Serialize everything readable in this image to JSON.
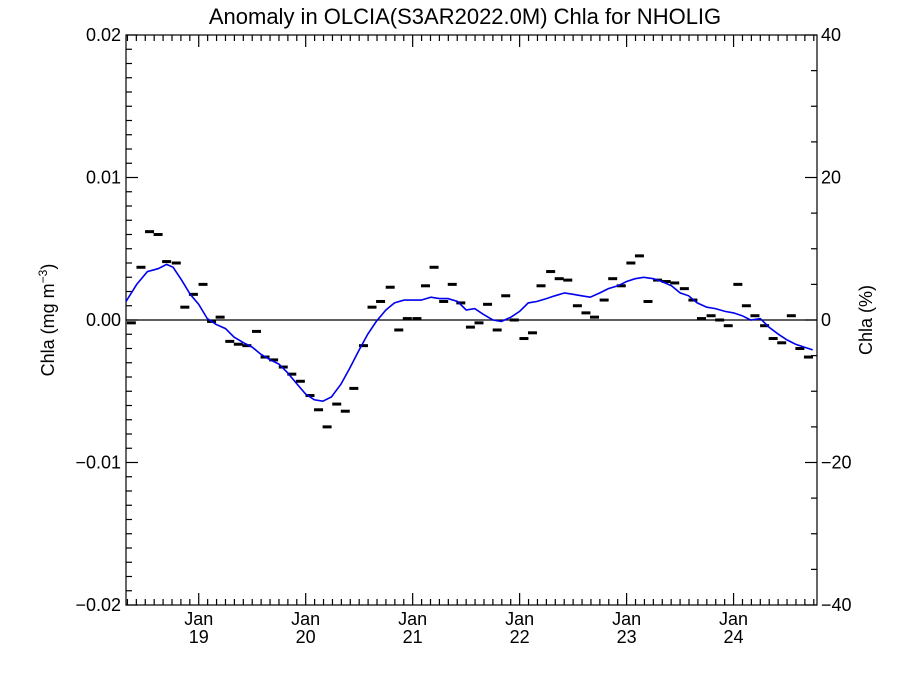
{
  "chart_data": {
    "type": "line",
    "title": "Anomaly in OLCIA(S3AR2022.0M) Chla for NHOLIG",
    "ylabel_left": {
      "main": "Chla (mg m",
      "superscript": "−3",
      "close": ")"
    },
    "ylabel_right": "Chla (%)",
    "xlim": [
      2018.32,
      2024.78
    ],
    "ylim_left": [
      -0.02,
      0.02
    ],
    "ylim_right": [
      -40,
      40
    ],
    "left_ticks": [
      {
        "value": 0.02,
        "label": "0.02"
      },
      {
        "value": 0.01,
        "label": "0.01"
      },
      {
        "value": 0.0,
        "label": "0.00"
      },
      {
        "value": -0.01,
        "label": "−0.01"
      },
      {
        "value": -0.02,
        "label": "−0.02"
      }
    ],
    "right_ticks": [
      {
        "value": 40,
        "label": "40"
      },
      {
        "value": 20,
        "label": "20"
      },
      {
        "value": 0,
        "label": "0"
      },
      {
        "value": -20,
        "label": "−20"
      },
      {
        "value": -40,
        "label": "−40"
      }
    ],
    "x_ticks": [
      {
        "value": 2019.0,
        "month": "Jan",
        "year": "19"
      },
      {
        "value": 2020.0,
        "month": "Jan",
        "year": "20"
      },
      {
        "value": 2021.0,
        "month": "Jan",
        "year": "21"
      },
      {
        "value": 2022.0,
        "month": "Jan",
        "year": "22"
      },
      {
        "value": 2023.0,
        "month": "Jan",
        "year": "23"
      },
      {
        "value": 2024.0,
        "month": "Jan",
        "year": "24"
      }
    ],
    "zero_line": true,
    "series": [
      {
        "style": "markers",
        "color": "#000000",
        "points": [
          [
            2018.37,
            -0.0002
          ],
          [
            2018.46,
            0.0037
          ],
          [
            2018.54,
            0.0062
          ],
          [
            2018.62,
            0.006
          ],
          [
            2018.7,
            0.0041
          ],
          [
            2018.79,
            0.004
          ],
          [
            2018.87,
            0.0009
          ],
          [
            2018.95,
            0.0018
          ],
          [
            2019.04,
            0.0025
          ],
          [
            2019.12,
            -0.0001
          ],
          [
            2019.2,
            0.0002
          ],
          [
            2019.29,
            -0.0015
          ],
          [
            2019.37,
            -0.0017
          ],
          [
            2019.45,
            -0.0018
          ],
          [
            2019.54,
            -0.0008
          ],
          [
            2019.62,
            -0.0026
          ],
          [
            2019.7,
            -0.0028
          ],
          [
            2019.79,
            -0.0033
          ],
          [
            2019.87,
            -0.0038
          ],
          [
            2019.95,
            -0.0043
          ],
          [
            2020.04,
            -0.0053
          ],
          [
            2020.12,
            -0.0063
          ],
          [
            2020.2,
            -0.0075
          ],
          [
            2020.29,
            -0.0059
          ],
          [
            2020.37,
            -0.0064
          ],
          [
            2020.45,
            -0.0048
          ],
          [
            2020.54,
            -0.0018
          ],
          [
            2020.62,
            0.0009
          ],
          [
            2020.7,
            0.0013
          ],
          [
            2020.79,
            0.0023
          ],
          [
            2020.87,
            -0.0007
          ],
          [
            2020.95,
            0.0001
          ],
          [
            2021.04,
            0.0001
          ],
          [
            2021.12,
            0.0024
          ],
          [
            2021.2,
            0.0037
          ],
          [
            2021.29,
            0.0013
          ],
          [
            2021.37,
            0.0025
          ],
          [
            2021.45,
            0.0012
          ],
          [
            2021.54,
            -0.0005
          ],
          [
            2021.62,
            -0.0002
          ],
          [
            2021.7,
            0.0011
          ],
          [
            2021.79,
            -0.0007
          ],
          [
            2021.87,
            0.0017
          ],
          [
            2021.95,
            0.0
          ],
          [
            2022.04,
            -0.0013
          ],
          [
            2022.12,
            -0.0009
          ],
          [
            2022.2,
            0.0024
          ],
          [
            2022.29,
            0.0034
          ],
          [
            2022.37,
            0.0029
          ],
          [
            2022.45,
            0.0028
          ],
          [
            2022.54,
            0.001
          ],
          [
            2022.62,
            0.0005
          ],
          [
            2022.7,
            0.0002
          ],
          [
            2022.79,
            0.0014
          ],
          [
            2022.87,
            0.0029
          ],
          [
            2022.95,
            0.0024
          ],
          [
            2023.04,
            0.004
          ],
          [
            2023.12,
            0.0045
          ],
          [
            2023.2,
            0.0013
          ],
          [
            2023.29,
            0.0028
          ],
          [
            2023.37,
            0.0027
          ],
          [
            2023.45,
            0.0026
          ],
          [
            2023.54,
            0.0022
          ],
          [
            2023.62,
            0.0014
          ],
          [
            2023.7,
            0.0001
          ],
          [
            2023.79,
            0.0003
          ],
          [
            2023.87,
            0.0
          ],
          [
            2023.95,
            -0.0004
          ],
          [
            2024.04,
            0.0025
          ],
          [
            2024.12,
            0.001
          ],
          [
            2024.2,
            0.0003
          ],
          [
            2024.29,
            -0.0004
          ],
          [
            2024.37,
            -0.0013
          ],
          [
            2024.45,
            -0.0016
          ],
          [
            2024.54,
            0.0003
          ],
          [
            2024.62,
            -0.002
          ],
          [
            2024.7,
            -0.0026
          ]
        ]
      },
      {
        "style": "line",
        "color": "#0000ee",
        "points": [
          [
            2018.32,
            0.0013
          ],
          [
            2018.42,
            0.0025
          ],
          [
            2018.52,
            0.0034
          ],
          [
            2018.62,
            0.0036
          ],
          [
            2018.7,
            0.0039
          ],
          [
            2018.76,
            0.0037
          ],
          [
            2018.84,
            0.0028
          ],
          [
            2018.92,
            0.0018
          ],
          [
            2019.0,
            0.0011
          ],
          [
            2019.08,
            0.0001
          ],
          [
            2019.16,
            -0.0003
          ],
          [
            2019.25,
            -0.0006
          ],
          [
            2019.33,
            -0.0012
          ],
          [
            2019.42,
            -0.0016
          ],
          [
            2019.5,
            -0.0019
          ],
          [
            2019.58,
            -0.0024
          ],
          [
            2019.67,
            -0.0028
          ],
          [
            2019.75,
            -0.0031
          ],
          [
            2019.83,
            -0.0037
          ],
          [
            2019.92,
            -0.0045
          ],
          [
            2020.0,
            -0.0052
          ],
          [
            2020.08,
            -0.0056
          ],
          [
            2020.16,
            -0.0057
          ],
          [
            2020.24,
            -0.0054
          ],
          [
            2020.33,
            -0.0045
          ],
          [
            2020.41,
            -0.0034
          ],
          [
            2020.5,
            -0.0021
          ],
          [
            2020.58,
            -0.001
          ],
          [
            2020.66,
            -0.0001
          ],
          [
            2020.75,
            0.0007
          ],
          [
            2020.83,
            0.0012
          ],
          [
            2020.92,
            0.0014
          ],
          [
            2021.0,
            0.0014
          ],
          [
            2021.08,
            0.0014
          ],
          [
            2021.17,
            0.0016
          ],
          [
            2021.25,
            0.0015
          ],
          [
            2021.33,
            0.0015
          ],
          [
            2021.42,
            0.0013
          ],
          [
            2021.5,
            0.0007
          ],
          [
            2021.58,
            0.0008
          ],
          [
            2021.66,
            0.0004
          ],
          [
            2021.75,
            0.0
          ],
          [
            2021.83,
            -0.0001
          ],
          [
            2021.92,
            0.0002
          ],
          [
            2022.0,
            0.0006
          ],
          [
            2022.08,
            0.0012
          ],
          [
            2022.16,
            0.0013
          ],
          [
            2022.25,
            0.0015
          ],
          [
            2022.33,
            0.0017
          ],
          [
            2022.42,
            0.0019
          ],
          [
            2022.5,
            0.0018
          ],
          [
            2022.58,
            0.0017
          ],
          [
            2022.66,
            0.0016
          ],
          [
            2022.75,
            0.0019
          ],
          [
            2022.83,
            0.0022
          ],
          [
            2022.92,
            0.0024
          ],
          [
            2023.0,
            0.0027
          ],
          [
            2023.08,
            0.0029
          ],
          [
            2023.16,
            0.003
          ],
          [
            2023.25,
            0.0029
          ],
          [
            2023.33,
            0.0027
          ],
          [
            2023.42,
            0.0024
          ],
          [
            2023.5,
            0.0019
          ],
          [
            2023.58,
            0.0017
          ],
          [
            2023.66,
            0.0012
          ],
          [
            2023.75,
            0.0009
          ],
          [
            2023.83,
            0.0008
          ],
          [
            2023.92,
            0.0006
          ],
          [
            2024.0,
            0.0005
          ],
          [
            2024.08,
            0.0003
          ],
          [
            2024.16,
            0.0
          ],
          [
            2024.25,
            0.0001
          ],
          [
            2024.33,
            -0.0005
          ],
          [
            2024.42,
            -0.001
          ],
          [
            2024.5,
            -0.0014
          ],
          [
            2024.58,
            -0.0017
          ],
          [
            2024.66,
            -0.0019
          ],
          [
            2024.74,
            -0.0021
          ]
        ]
      }
    ]
  }
}
